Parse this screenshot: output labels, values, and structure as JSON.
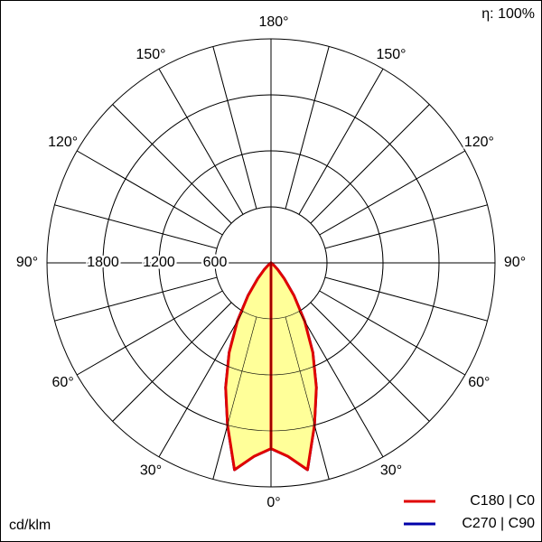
{
  "chart_data": {
    "type": "polar",
    "efficiency_label": "η: 100%",
    "unit_label": "cd/klm",
    "x": [
      0,
      5,
      10,
      15,
      20,
      25,
      30,
      35,
      40,
      45,
      50,
      55,
      60,
      65,
      70,
      75,
      80,
      85,
      90,
      95,
      100,
      105,
      110,
      115,
      120,
      125,
      130,
      135,
      140,
      145,
      150,
      155,
      160,
      165,
      170,
      175,
      180
    ],
    "series": [
      {
        "name": "C270 | C90",
        "color": "#0000aa",
        "values": [
          1990,
          2080,
          2250,
          1800,
          1420,
          1060,
          720,
          430,
          220,
          100,
          40,
          10,
          0,
          0,
          0,
          0,
          0,
          0,
          0,
          0,
          0,
          0,
          0,
          0,
          0,
          0,
          0,
          0,
          0,
          0,
          0,
          0,
          0,
          0,
          0,
          0,
          0
        ]
      },
      {
        "name": "C180 | C0",
        "color": "#e00000",
        "fill": "#ffff99",
        "values": [
          1990,
          2080,
          2250,
          1800,
          1420,
          1060,
          720,
          430,
          220,
          100,
          40,
          10,
          0,
          0,
          0,
          0,
          0,
          0,
          0,
          0,
          0,
          0,
          0,
          0,
          0,
          0,
          0,
          0,
          0,
          0,
          0,
          0,
          0,
          0,
          0,
          0,
          0
        ]
      }
    ],
    "rlim": [
      0,
      2400
    ],
    "rticks": [
      600,
      1200,
      1800
    ],
    "angle_ticks": [
      {
        "value": 0,
        "label": "0°"
      },
      {
        "value": 30,
        "label": "30°"
      },
      {
        "value": 60,
        "label": "60°"
      },
      {
        "value": 90,
        "label": "90°"
      },
      {
        "value": 120,
        "label": "120°"
      },
      {
        "value": 150,
        "label": "150°"
      },
      {
        "value": 180,
        "label": "180°"
      }
    ],
    "angle_grid_step": 15
  }
}
